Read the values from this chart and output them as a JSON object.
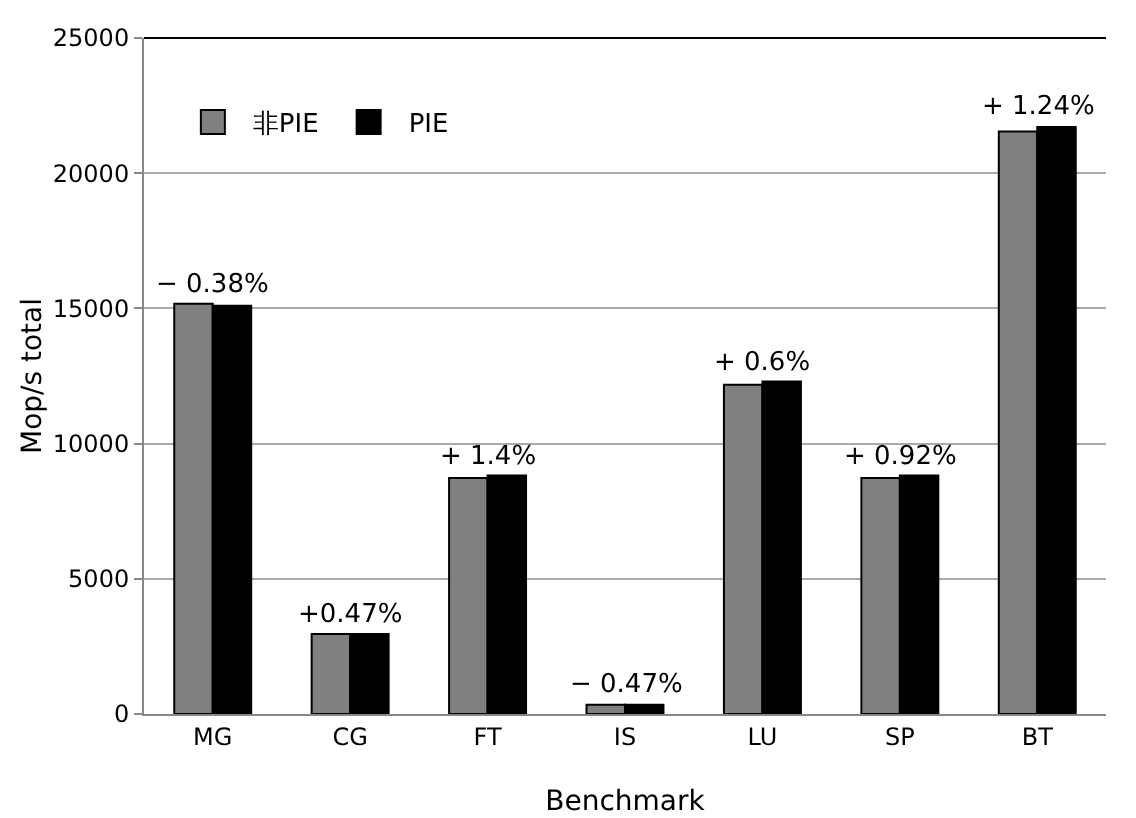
{
  "chart_data": {
    "type": "bar",
    "xlabel": "Benchmark",
    "ylabel": "Mop/s total",
    "categories": [
      "MG",
      "CG",
      "FT",
      "IS",
      "LU",
      "SP",
      "BT"
    ],
    "series": [
      {
        "name": "非PIE",
        "color": "#808080",
        "values": [
          15170,
          2960,
          8730,
          340,
          12180,
          8730,
          21540
        ]
      },
      {
        "name": "PIE",
        "color": "#000000",
        "values": [
          15100,
          2960,
          8820,
          340,
          12300,
          8820,
          21710
        ]
      }
    ],
    "annotations": [
      {
        "text": "− 0.38%",
        "x": "MG",
        "y": 15170
      },
      {
        "text": "+0.47%",
        "x": "CG",
        "y": 2960
      },
      {
        "text": "+ 1.4%",
        "x": "FT",
        "y": 8820
      },
      {
        "text": "− 0.47%",
        "x": "IS",
        "y": 340
      },
      {
        "text": "+ 0.6%",
        "x": "LU",
        "y": 12300
      },
      {
        "text": "+ 0.92%",
        "x": "SP",
        "y": 8820
      },
      {
        "text": "+ 1.24%",
        "x": "BT",
        "y": 21710
      }
    ],
    "ylim": [
      0,
      25000
    ],
    "yticks": [
      0,
      5000,
      10000,
      15000,
      20000,
      25000
    ],
    "grid": "y",
    "legend": "top left"
  }
}
